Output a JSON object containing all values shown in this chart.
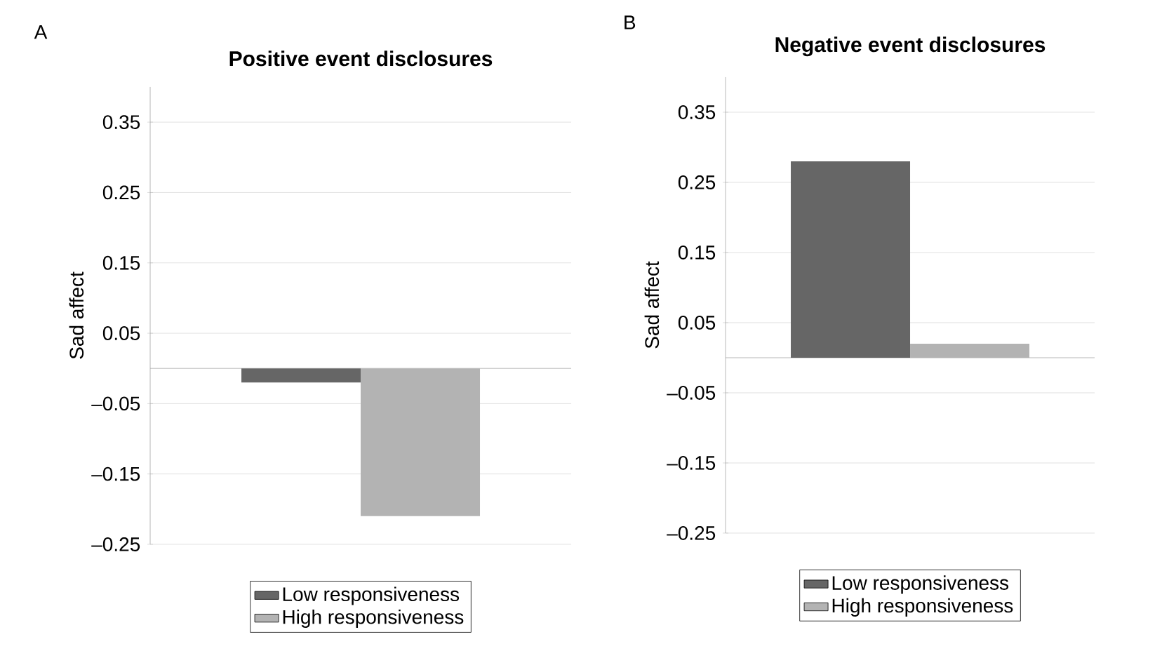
{
  "chart_data": [
    {
      "type": "bar",
      "title": "Positive event disclosures",
      "ylabel": "Sad affect",
      "annotations": [
        "A"
      ],
      "categories": [
        null
      ],
      "series": [
        {
          "name": "Low responsiveness",
          "color": "#666666",
          "values": [
            -0.02
          ]
        },
        {
          "name": "High responsiveness",
          "color": "#b3b3b3",
          "values": [
            -0.21
          ]
        }
      ],
      "ylim": [
        -0.25,
        0.4
      ],
      "yticks": [
        {
          "value": -0.25,
          "label": "–0.25"
        },
        {
          "value": -0.15,
          "label": "–0.15"
        },
        {
          "value": -0.05,
          "label": "–0.05"
        },
        0.05,
        0.15,
        0.25,
        0.35
      ],
      "grid": "y",
      "legend": "bottom"
    },
    {
      "type": "bar",
      "title": "Negative event disclosures",
      "ylabel": "Sad affect",
      "annotations": [
        "B"
      ],
      "categories": [
        null
      ],
      "series": [
        {
          "name": "Low responsiveness",
          "color": "#666666",
          "values": [
            0.28
          ]
        },
        {
          "name": "High responsiveness",
          "color": "#b3b3b3",
          "values": [
            0.02
          ]
        }
      ],
      "ylim": [
        -0.25,
        0.4
      ],
      "yticks": [
        {
          "value": -0.25,
          "label": "–0.25"
        },
        {
          "value": -0.15,
          "label": "–0.15"
        },
        {
          "value": -0.05,
          "label": "–0.05"
        },
        0.05,
        0.15,
        0.25,
        0.35
      ],
      "grid": "y",
      "legend": "bottom"
    }
  ]
}
